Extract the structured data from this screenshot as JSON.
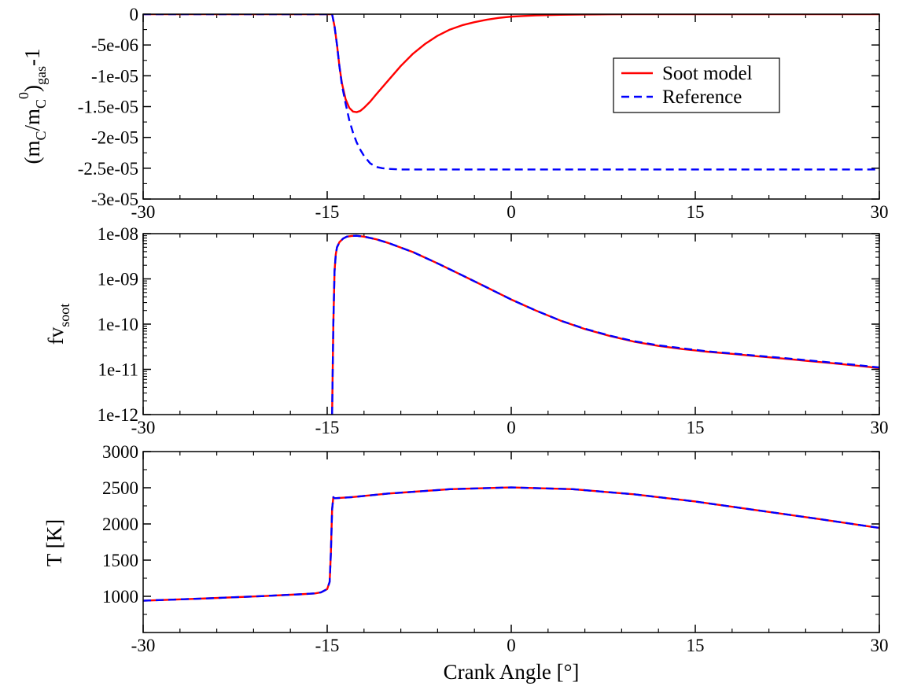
{
  "chart_data": [
    {
      "type": "line",
      "ylabel": "(mC/mC0)gas-1",
      "ylabel_parts": {
        "open": "(m",
        "sub1": "C",
        "mid": "/m",
        "sub2": "C",
        "sup": "0",
        "close": ")",
        "sub3": "gas",
        "tail": "-1"
      },
      "xlim": [
        -30,
        30
      ],
      "ylim": [
        -3e-05,
        0
      ],
      "x_ticks": [
        -30,
        -15,
        0,
        15,
        30
      ],
      "x_tick_labels": [
        "-30",
        "-15",
        "0",
        "15",
        "30"
      ],
      "y_ticks": [
        0,
        -5e-06,
        -1e-05,
        -1.5e-05,
        -2e-05,
        -2.5e-05,
        -3e-05
      ],
      "y_tick_labels": [
        "0",
        "-5e-06",
        "-1e-05",
        "-1.5e-05",
        "-2e-05",
        "-2.5e-05",
        "-3e-05"
      ],
      "grid": false,
      "legend": {
        "placement": "top-right",
        "entries": [
          {
            "label": "Soot model",
            "color": "#ff0000",
            "dash": "solid"
          },
          {
            "label": "Reference",
            "color": "#0000ff",
            "dash": "dashed"
          }
        ]
      },
      "series": [
        {
          "name": "Soot model",
          "color": "#ff0000",
          "dash": "solid",
          "x": [
            -30,
            -14.6,
            -14.4,
            -14.2,
            -14.0,
            -13.8,
            -13.5,
            -13.2,
            -12.9,
            -12.6,
            -12.3,
            -12.0,
            -11.5,
            -11.0,
            -10.0,
            -9.0,
            -8.0,
            -7.0,
            -6.0,
            -5.0,
            -4.0,
            -3.0,
            -2.0,
            -1.0,
            0,
            1,
            2,
            4,
            6,
            8,
            10,
            15,
            20,
            30
          ],
          "y": [
            0,
            0,
            -2e-06,
            -5e-06,
            -8.5e-06,
            -1.12e-05,
            -1.38e-05,
            -1.52e-05,
            -1.58e-05,
            -1.59e-05,
            -1.57e-05,
            -1.52e-05,
            -1.42e-05,
            -1.3e-05,
            -1.07e-05,
            -8.4e-06,
            -6.4e-06,
            -4.8e-06,
            -3.5e-06,
            -2.5e-06,
            -1.8e-06,
            -1.3e-06,
            -9e-07,
            -6e-07,
            -4e-07,
            -3e-07,
            -2e-07,
            -1e-07,
            -5e-08,
            -2e-08,
            0,
            0,
            0,
            0
          ]
        },
        {
          "name": "Reference",
          "color": "#0000ff",
          "dash": "dashed",
          "x": [
            -30,
            -14.6,
            -14.4,
            -14.2,
            -14.0,
            -13.8,
            -13.5,
            -13.2,
            -12.9,
            -12.6,
            -12.3,
            -12.0,
            -11.5,
            -11.0,
            -10.5,
            -10.0,
            -9.0,
            -8.0,
            -5.0,
            0,
            10,
            20,
            30
          ],
          "y": [
            0,
            0,
            -2e-06,
            -5e-06,
            -8.5e-06,
            -1.15e-05,
            -1.45e-05,
            -1.72e-05,
            -1.92e-05,
            -2.08e-05,
            -2.2e-05,
            -2.3e-05,
            -2.42e-05,
            -2.48e-05,
            -2.5e-05,
            -2.51e-05,
            -2.52e-05,
            -2.52e-05,
            -2.52e-05,
            -2.52e-05,
            -2.52e-05,
            -2.52e-05,
            -2.52e-05
          ]
        }
      ]
    },
    {
      "type": "line",
      "ylabel": "fvsoot",
      "ylabel_parts": {
        "main": "fv",
        "sub": "soot"
      },
      "yscale": "log",
      "xlim": [
        -30,
        30
      ],
      "ylim": [
        1e-12,
        1e-08
      ],
      "x_ticks": [
        -30,
        -15,
        0,
        15,
        30
      ],
      "x_tick_labels": [
        "-30",
        "-15",
        "0",
        "15",
        "30"
      ],
      "y_ticks": [
        1e-08,
        1e-09,
        1e-10,
        1e-11,
        1e-12
      ],
      "y_tick_labels": [
        "1e-08",
        "1e-09",
        "1e-10",
        "1e-11",
        "1e-12"
      ],
      "grid": false,
      "series": [
        {
          "name": "Soot model",
          "color": "#ff0000",
          "dash": "solid",
          "x": [
            -14.6,
            -14.5,
            -14.4,
            -14.3,
            -14.2,
            -14.0,
            -13.7,
            -13.4,
            -13.0,
            -12.6,
            -12.0,
            -11.0,
            -10.0,
            -8.0,
            -6.0,
            -4.0,
            -2.0,
            0,
            2,
            4,
            6,
            8,
            10,
            12,
            14,
            16,
            18,
            20,
            22,
            24,
            26,
            28,
            30
          ],
          "y": [
            1e-12,
            1e-10,
            1.5e-09,
            3.5e-09,
            5e-09,
            6.5e-09,
            7.8e-09,
            8.6e-09,
            8.9e-09,
            9e-09,
            8.6e-09,
            7.5e-09,
            6.2e-09,
            3.9e-09,
            2.2e-09,
            1.2e-09,
            6.5e-10,
            3.5e-10,
            2e-10,
            1.2e-10,
            7.8e-11,
            5.5e-11,
            4.1e-11,
            3.3e-11,
            2.8e-11,
            2.45e-11,
            2.2e-11,
            1.95e-11,
            1.75e-11,
            1.55e-11,
            1.38e-11,
            1.22e-11,
            1.07e-11
          ]
        },
        {
          "name": "Reference",
          "color": "#0000ff",
          "dash": "dashed",
          "x": [
            -14.6,
            -14.5,
            -14.4,
            -14.3,
            -14.2,
            -14.0,
            -13.7,
            -13.4,
            -13.0,
            -12.6,
            -12.0,
            -11.0,
            -10.0,
            -8.0,
            -6.0,
            -4.0,
            -2.0,
            0,
            2,
            4,
            6,
            8,
            10,
            12,
            14,
            16,
            18,
            20,
            22,
            24,
            26,
            28,
            30
          ],
          "y": [
            1e-12,
            1e-10,
            1.5e-09,
            3.5e-09,
            5e-09,
            6.5e-09,
            7.8e-09,
            8.6e-09,
            8.9e-09,
            9e-09,
            8.6e-09,
            7.5e-09,
            6.2e-09,
            3.9e-09,
            2.2e-09,
            1.2e-09,
            6.5e-10,
            3.5e-10,
            2e-10,
            1.2e-10,
            7.9e-11,
            5.6e-11,
            4.2e-11,
            3.4e-11,
            2.9e-11,
            2.5e-11,
            2.25e-11,
            2e-11,
            1.8e-11,
            1.6e-11,
            1.42e-11,
            1.26e-11,
            1.1e-11
          ]
        }
      ]
    },
    {
      "type": "line",
      "ylabel": "T [K]",
      "xlabel": "Crank Angle [°]",
      "xlim": [
        -30,
        30
      ],
      "ylim": [
        500,
        3000
      ],
      "x_ticks": [
        -30,
        -15,
        0,
        15,
        30
      ],
      "x_tick_labels": [
        "-30",
        "-15",
        "0",
        "15",
        "30"
      ],
      "y_ticks": [
        1000,
        1500,
        2000,
        2500,
        3000
      ],
      "y_tick_labels": [
        "1000",
        "1500",
        "2000",
        "2500",
        "3000"
      ],
      "grid": false,
      "series": [
        {
          "name": "Soot model",
          "color": "#ff0000",
          "dash": "solid",
          "x": [
            -30,
            -25,
            -20,
            -17,
            -16,
            -15.5,
            -15.0,
            -14.8,
            -14.7,
            -14.6,
            -14.5,
            -14.4,
            -13,
            -10,
            -5,
            0,
            5,
            10,
            15,
            20,
            25,
            30
          ],
          "y": [
            940,
            970,
            1005,
            1030,
            1040,
            1055,
            1100,
            1200,
            1600,
            2200,
            2370,
            2355,
            2370,
            2420,
            2480,
            2505,
            2480,
            2410,
            2310,
            2190,
            2070,
            1945
          ]
        },
        {
          "name": "Reference",
          "color": "#0000ff",
          "dash": "dashed",
          "x": [
            -30,
            -25,
            -20,
            -17,
            -16,
            -15.5,
            -15.0,
            -14.8,
            -14.7,
            -14.6,
            -14.5,
            -14.4,
            -13,
            -10,
            -5,
            0,
            5,
            10,
            15,
            20,
            25,
            30
          ],
          "y": [
            940,
            970,
            1005,
            1030,
            1040,
            1055,
            1100,
            1200,
            1600,
            2200,
            2370,
            2355,
            2370,
            2420,
            2480,
            2505,
            2480,
            2410,
            2310,
            2190,
            2070,
            1945
          ]
        }
      ]
    }
  ]
}
